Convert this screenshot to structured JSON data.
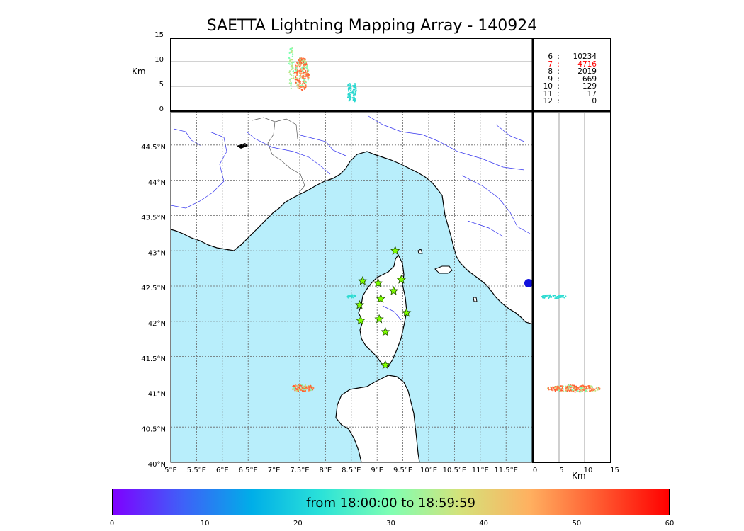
{
  "title": "SAETTA Lightning Mapping Array - 140924",
  "top_panel": {
    "unit": "Km",
    "y_ticks": [
      "15",
      "10",
      "5",
      "0"
    ]
  },
  "stats": [
    {
      "station": "6",
      "sep": ":",
      "count": "10234",
      "highlight": false
    },
    {
      "station": "7",
      "sep": ":",
      "count": "4716",
      "highlight": true
    },
    {
      "station": "8",
      "sep": ":",
      "count": "2019",
      "highlight": false
    },
    {
      "station": "9",
      "sep": ":",
      "count": "669",
      "highlight": false
    },
    {
      "station": "10",
      "sep": ":",
      "count": "129",
      "highlight": false
    },
    {
      "station": "11",
      "sep": ":",
      "count": "17",
      "highlight": false
    },
    {
      "station": "12",
      "sep": ":",
      "count": "0",
      "highlight": false
    }
  ],
  "map": {
    "lat_labels": [
      "44.5°N",
      "44°N",
      "43.5°N",
      "43°N",
      "42.5°N",
      "42°N",
      "41.5°N",
      "41°N",
      "40.5°N",
      "40°N"
    ],
    "lon_labels": [
      "5°E",
      "5.5°E",
      "6°E",
      "6.5°E",
      "7°E",
      "7.5°E",
      "8°E",
      "8.5°E",
      "9°E",
      "9.5°E",
      "10°E",
      "10.5°E",
      "11°E",
      "11.5°E"
    ],
    "sea_color": "#b8eefb",
    "stations": [
      {
        "lon": 9.35,
        "lat": 43.0
      },
      {
        "lon": 8.72,
        "lat": 42.57
      },
      {
        "lon": 9.02,
        "lat": 42.54
      },
      {
        "lon": 9.47,
        "lat": 42.59
      },
      {
        "lon": 9.32,
        "lat": 42.43
      },
      {
        "lon": 9.07,
        "lat": 42.32
      },
      {
        "lon": 8.66,
        "lat": 42.23
      },
      {
        "lon": 9.57,
        "lat": 42.12
      },
      {
        "lon": 8.68,
        "lat": 42.01
      },
      {
        "lon": 9.04,
        "lat": 42.03
      },
      {
        "lon": 9.16,
        "lat": 41.85
      },
      {
        "lon": 9.16,
        "lat": 41.38
      }
    ]
  },
  "right_panel": {
    "unit": "Km",
    "x_ticks": [
      "0",
      "5",
      "10",
      "15"
    ]
  },
  "colorbar": {
    "label": "from 18:00:00 to 18:59:59",
    "ticks": [
      "0",
      "10",
      "20",
      "30",
      "40",
      "50",
      "60"
    ],
    "min": 0,
    "max": 60
  }
}
